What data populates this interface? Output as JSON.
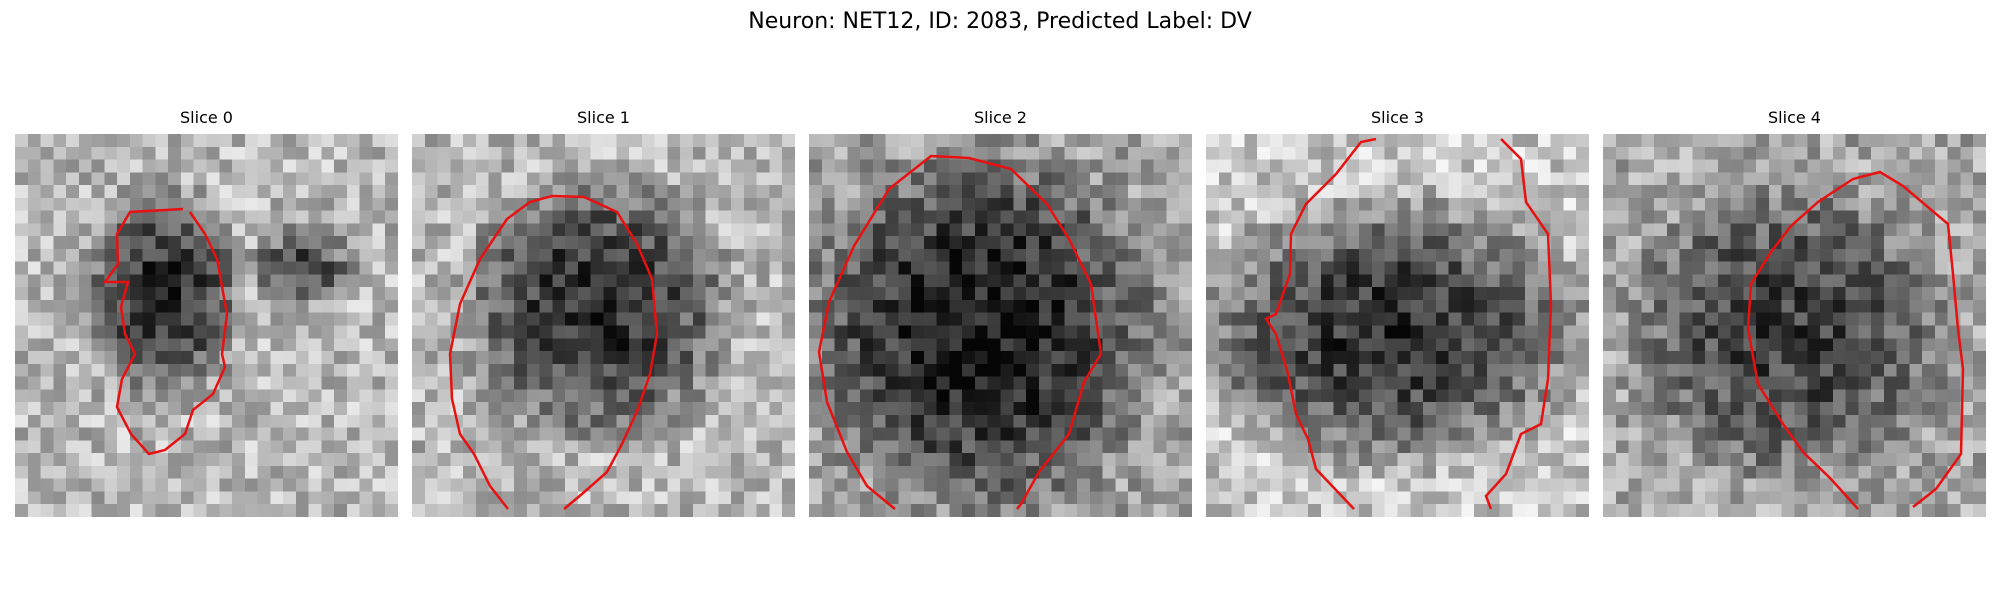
{
  "figure": {
    "title": "Neuron: NET12, ID: 2083, Predicted Label: DV",
    "contour_color": "#e81010"
  },
  "panels": [
    {
      "title": "Slice 0"
    },
    {
      "title": "Slice 1"
    },
    {
      "title": "Slice 2"
    },
    {
      "title": "Slice 3"
    },
    {
      "title": "Slice 4"
    }
  ]
}
